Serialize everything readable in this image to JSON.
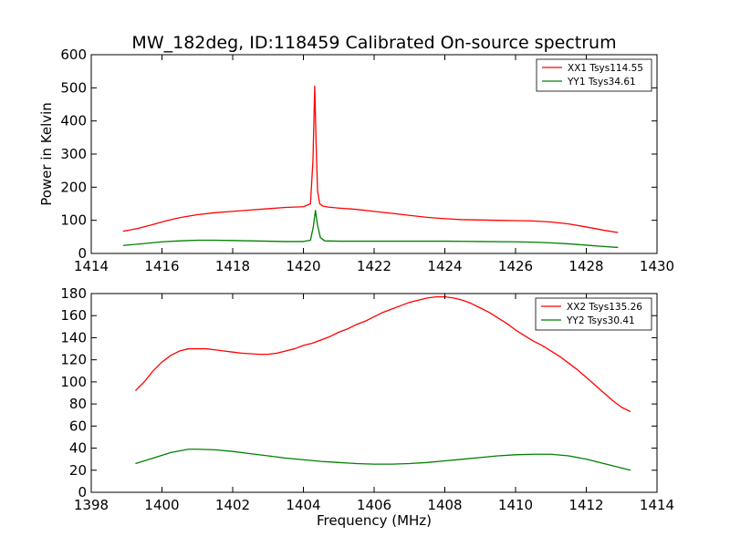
{
  "chart_data": [
    {
      "type": "line",
      "title": "MW_182deg, ID:118459 Calibrated On-source spectrum",
      "xlabel": "",
      "ylabel": "Power in Kelvin",
      "xlim": [
        1414,
        1430
      ],
      "ylim": [
        0,
        600
      ],
      "xticks": [
        "1414",
        "1416",
        "1418",
        "1420",
        "1422",
        "1424",
        "1426",
        "1428",
        "1430"
      ],
      "yticks": [
        "0",
        "100",
        "200",
        "300",
        "400",
        "500",
        "600"
      ],
      "grid": false,
      "legend_position": "top-right",
      "series": [
        {
          "name": "XX1 Tsys114.55",
          "color": "#ff0000",
          "x": [
            1414.9,
            1415.3,
            1415.7,
            1416.1,
            1416.5,
            1417.0,
            1417.5,
            1418.0,
            1418.5,
            1419.0,
            1419.5,
            1420.0,
            1420.2,
            1420.27,
            1420.32,
            1420.36,
            1420.4,
            1420.46,
            1420.55,
            1420.7,
            1421.0,
            1421.5,
            1422.0,
            1422.5,
            1423.0,
            1423.5,
            1424.0,
            1424.5,
            1425.0,
            1425.5,
            1426.0,
            1426.5,
            1427.0,
            1427.5,
            1428.0,
            1428.5,
            1428.9
          ],
          "values": [
            67,
            75,
            86,
            98,
            108,
            117,
            123,
            127,
            131,
            135,
            139,
            141,
            150,
            280,
            505,
            330,
            190,
            150,
            143,
            140,
            137,
            133,
            127,
            121,
            115,
            109,
            105,
            102,
            101,
            100,
            99,
            98,
            95,
            89,
            80,
            70,
            63
          ]
        },
        {
          "name": "YY1 Tsys34.61",
          "color": "#008000",
          "x": [
            1414.9,
            1415.5,
            1416.0,
            1416.5,
            1417.0,
            1417.5,
            1418.0,
            1418.5,
            1419.0,
            1419.5,
            1420.0,
            1420.2,
            1420.28,
            1420.34,
            1420.4,
            1420.48,
            1420.6,
            1421.0,
            1422.0,
            1423.0,
            1424.0,
            1425.0,
            1426.0,
            1426.5,
            1427.0,
            1427.5,
            1428.0,
            1428.5,
            1428.9
          ],
          "values": [
            24,
            30,
            35,
            38,
            40,
            40,
            39,
            38,
            37,
            36,
            36,
            40,
            80,
            130,
            85,
            48,
            38,
            37,
            37,
            37,
            37,
            36,
            35,
            34,
            32,
            29,
            25,
            21,
            18
          ]
        }
      ]
    },
    {
      "type": "line",
      "title": "",
      "xlabel": "Frequency (MHz)",
      "ylabel": "",
      "xlim": [
        1398,
        1414
      ],
      "ylim": [
        0,
        180
      ],
      "xticks": [
        "1398",
        "1400",
        "1402",
        "1404",
        "1406",
        "1408",
        "1410",
        "1412",
        "1414"
      ],
      "yticks": [
        "0",
        "20",
        "40",
        "60",
        "80",
        "100",
        "120",
        "140",
        "160",
        "180"
      ],
      "grid": false,
      "legend_position": "top-right",
      "series": [
        {
          "name": "XX2 Tsys135.26",
          "color": "#ff0000",
          "x": [
            1399.25,
            1399.5,
            1399.75,
            1400.0,
            1400.25,
            1400.5,
            1400.75,
            1401.0,
            1401.25,
            1401.5,
            1401.75,
            1402.0,
            1402.25,
            1402.5,
            1402.75,
            1403.0,
            1403.25,
            1403.5,
            1403.75,
            1404.0,
            1404.25,
            1404.5,
            1404.75,
            1405.0,
            1405.25,
            1405.5,
            1405.75,
            1406.0,
            1406.25,
            1406.5,
            1406.75,
            1407.0,
            1407.25,
            1407.5,
            1407.75,
            1408.0,
            1408.25,
            1408.5,
            1408.75,
            1409.0,
            1409.25,
            1409.5,
            1409.75,
            1410.0,
            1410.25,
            1410.5,
            1410.75,
            1411.0,
            1411.25,
            1411.5,
            1411.75,
            1412.0,
            1412.25,
            1412.5,
            1412.75,
            1413.0,
            1413.25
          ],
          "values": [
            92,
            100,
            110,
            118,
            124,
            128,
            130,
            130,
            130,
            129,
            128,
            127,
            126,
            125.5,
            125,
            125,
            126,
            128,
            130,
            133,
            135,
            138,
            141,
            145,
            148,
            152,
            155,
            159,
            163,
            166,
            169,
            172,
            174,
            176,
            177,
            177,
            176,
            174,
            171,
            167,
            163,
            158,
            153,
            147,
            142,
            137,
            133,
            128,
            123,
            117,
            111,
            104,
            97,
            90,
            83,
            77,
            73
          ]
        },
        {
          "name": "YY2 Tsys30.41",
          "color": "#008000",
          "x": [
            1399.25,
            1399.75,
            1400.25,
            1400.75,
            1401.0,
            1401.5,
            1402.0,
            1402.5,
            1403.0,
            1403.5,
            1404.0,
            1404.5,
            1405.0,
            1405.5,
            1406.0,
            1406.5,
            1407.0,
            1407.5,
            1408.0,
            1408.5,
            1409.0,
            1409.5,
            1410.0,
            1410.5,
            1411.0,
            1411.5,
            1412.0,
            1412.5,
            1413.0,
            1413.25
          ],
          "values": [
            26,
            31,
            36,
            39,
            39,
            38.5,
            37,
            35,
            33,
            31,
            29.5,
            28,
            27,
            26,
            25.5,
            25.5,
            26,
            27,
            28.5,
            30,
            31.5,
            33,
            34,
            34.5,
            34.5,
            33,
            30,
            26,
            22,
            20
          ]
        }
      ]
    }
  ]
}
